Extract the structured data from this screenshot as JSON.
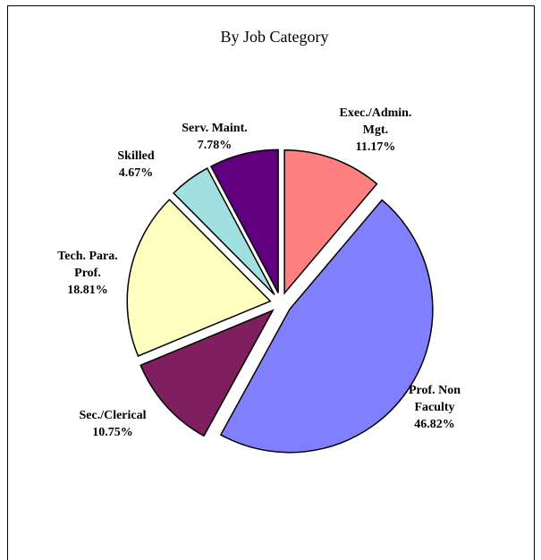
{
  "chart_data": {
    "type": "pie",
    "title": "By Job Category",
    "slices": [
      {
        "label_lines": [
          "Exec./Admin.",
          "Mgt."
        ],
        "value": 11.17,
        "value_text": "11.17%",
        "color": "#ff8080"
      },
      {
        "label_lines": [
          "Prof. Non",
          "Faculty"
        ],
        "value": 46.82,
        "value_text": "46.82%",
        "color": "#8080ff"
      },
      {
        "label_lines": [
          "Sec./Clerical"
        ],
        "value": 10.75,
        "value_text": "10.75%",
        "color": "#7f1f5f"
      },
      {
        "label_lines": [
          "Tech. Para.",
          "Prof."
        ],
        "value": 18.81,
        "value_text": "18.81%",
        "color": "#ffffc0"
      },
      {
        "label_lines": [
          "Skilled"
        ],
        "value": 4.67,
        "value_text": "4.67%",
        "color": "#a0e0e0"
      },
      {
        "label_lines": [
          "Serv. Maint."
        ],
        "value": 7.78,
        "value_text": "7.78%",
        "color": "#600080"
      }
    ],
    "legend": "none",
    "slice_outline": "#000000"
  }
}
